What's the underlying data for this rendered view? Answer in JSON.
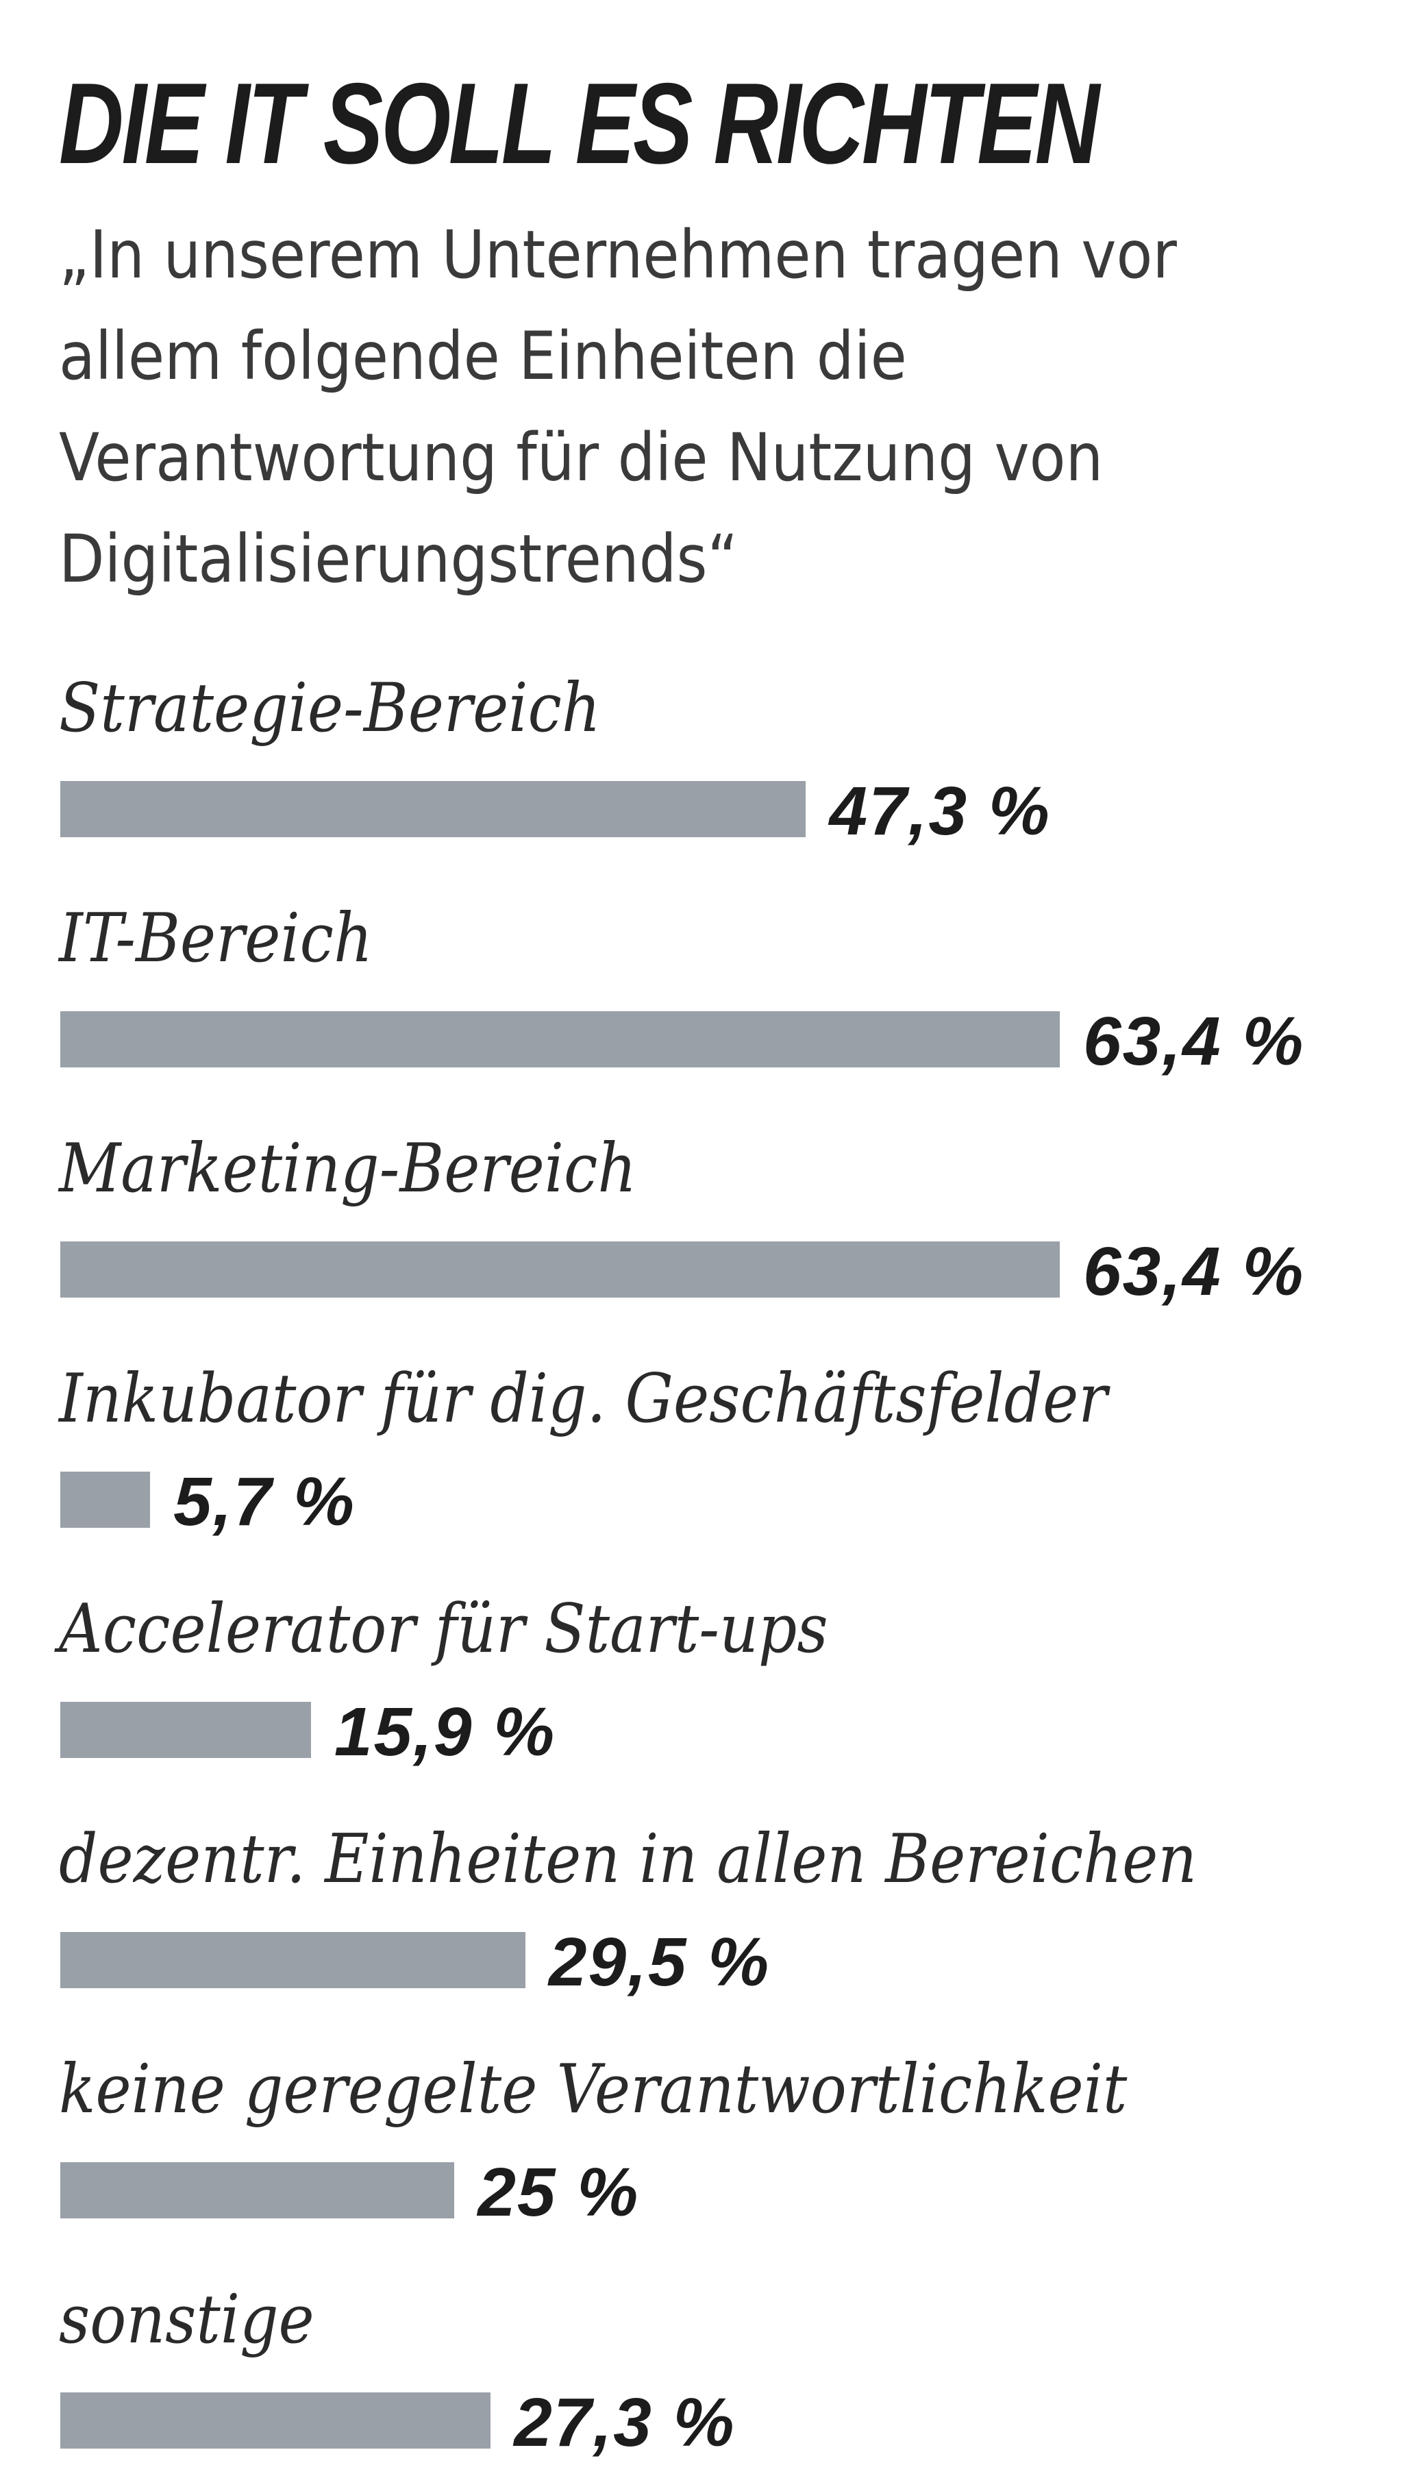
{
  "chart_data": {
    "type": "bar",
    "orientation": "horizontal",
    "title": "DIE IT SOLL ES RICHTEN",
    "subtitle": "„In unserem Unternehmen tragen vor allem folgende Einheiten die Verantwortung für die Nutzung von Digitalisierungstrends“",
    "categories": [
      "Strategie-Bereich",
      "IT-Bereich",
      "Marketing-Bereich",
      "Inkubator für dig. Geschäftsfelder",
      "Accelerator für Start-ups",
      "dezentr. Einheiten in allen Bereichen",
      "keine geregelte Verantwortlichkeit",
      "sonstige"
    ],
    "values": [
      47.3,
      63.4,
      63.4,
      5.7,
      15.9,
      29.5,
      25,
      27.3
    ],
    "value_labels": [
      "47,3 %",
      "63,4 %",
      "63,4 %",
      "5,7 %",
      "15,9 %",
      "29,5 %",
      "25 %",
      "27,3 %"
    ],
    "unit": "%",
    "bar_color": "#9aa0a8",
    "grid": false,
    "legend": "none"
  }
}
